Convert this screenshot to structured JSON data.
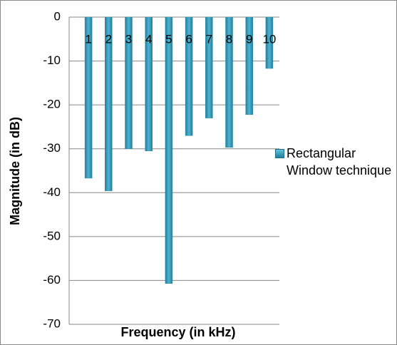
{
  "chart_data": {
    "type": "bar",
    "x_label": "Frequency  (in kHz)",
    "y_label": "Magnitude (in dB)",
    "categories": [
      "1",
      "2",
      "3",
      "4",
      "5",
      "6",
      "7",
      "8",
      "9",
      "10"
    ],
    "series": [
      {
        "name": "Rectangular Window technique",
        "color": "#2e8ba8",
        "values": [
          -36.7,
          -39.6,
          -30,
          -30.5,
          -60.7,
          -27,
          -23,
          -29.7,
          -22.2,
          -11.7
        ]
      }
    ],
    "ylim": [
      -70,
      0
    ],
    "yticks": [
      0,
      -10,
      -20,
      -30,
      -40,
      -50,
      -60,
      -70
    ],
    "grid": true
  }
}
